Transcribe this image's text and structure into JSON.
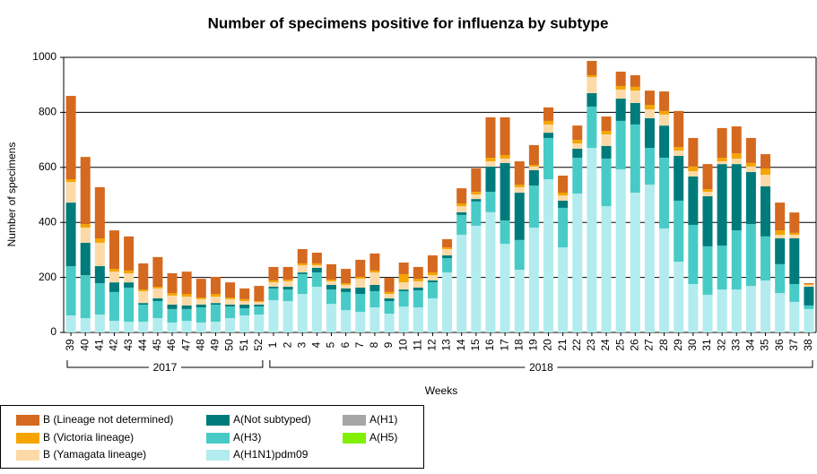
{
  "chart_data": {
    "type": "stacked-bar",
    "title": "Number of specimens positive for influenza by subtype",
    "y_label": "Number of specimens",
    "x_label": "Weeks",
    "groups": [
      "2017",
      "2018"
    ],
    "categories": [
      "39",
      "40",
      "41",
      "42",
      "43",
      "44",
      "45",
      "46",
      "47",
      "48",
      "49",
      "50",
      "51",
      "52",
      "1",
      "2",
      "3",
      "4",
      "5",
      "6",
      "7",
      "8",
      "9",
      "10",
      "11",
      "12",
      "13",
      "14",
      "15",
      "16",
      "17",
      "18",
      "19",
      "20",
      "21",
      "22",
      "23",
      "24",
      "25",
      "26",
      "27",
      "28",
      "29",
      "30",
      "31",
      "32",
      "33",
      "34",
      "35",
      "36",
      "37",
      "38"
    ],
    "ylim": [
      0,
      1000
    ],
    "yticks": [
      0,
      200,
      400,
      600,
      800,
      1000
    ],
    "grid": true,
    "series": [
      {
        "name": "A(H1N1)pdm09",
        "color": "#b2ecee",
        "values": [
          62,
          52,
          65,
          42,
          39,
          39,
          52,
          36,
          42,
          36,
          39,
          52,
          62,
          65,
          117,
          114,
          140,
          166,
          104,
          81,
          75,
          91,
          68,
          94,
          91,
          124,
          218,
          355,
          388,
          437,
          322,
          228,
          381,
          557,
          309,
          505,
          671,
          459,
          593,
          508,
          537,
          378,
          257,
          176,
          137,
          156,
          156,
          169,
          189,
          143,
          111,
          85
        ]
      },
      {
        "name": "A(H3)",
        "color": "#48cbc7",
        "values": [
          179,
          156,
          114,
          105,
          124,
          62,
          62,
          49,
          43,
          55,
          62,
          42,
          26,
          29,
          43,
          42,
          72,
          52,
          52,
          66,
          65,
          59,
          46,
          56,
          62,
          58,
          52,
          72,
          88,
          74,
          85,
          108,
          153,
          150,
          144,
          130,
          150,
          173,
          176,
          248,
          134,
          257,
          222,
          215,
          176,
          160,
          215,
          225,
          160,
          105,
          65,
          13
        ]
      },
      {
        "name": "A(Not subtyped)",
        "color": "#007b7b",
        "values": [
          231,
          118,
          62,
          35,
          19,
          6,
          10,
          16,
          13,
          10,
          6,
          7,
          13,
          7,
          6,
          10,
          6,
          17,
          17,
          13,
          23,
          23,
          10,
          6,
          10,
          7,
          10,
          10,
          9,
          92,
          209,
          172,
          56,
          19,
          26,
          33,
          49,
          46,
          81,
          78,
          108,
          117,
          163,
          176,
          182,
          296,
          241,
          189,
          182,
          94,
          166,
          68
        ]
      },
      {
        "name": "A(H1)",
        "color": "#a6a6a6",
        "values": [
          0,
          0,
          0,
          0,
          0,
          0,
          0,
          0,
          0,
          0,
          0,
          0,
          0,
          0,
          0,
          0,
          0,
          0,
          0,
          0,
          0,
          0,
          0,
          0,
          0,
          0,
          0,
          0,
          0,
          0,
          0,
          0,
          0,
          0,
          0,
          0,
          0,
          0,
          0,
          0,
          0,
          0,
          0,
          0,
          0,
          0,
          0,
          0,
          0,
          0,
          0,
          0
        ]
      },
      {
        "name": "A(H5)",
        "color": "#80f000",
        "values": [
          0,
          0,
          0,
          0,
          0,
          0,
          0,
          0,
          0,
          0,
          0,
          0,
          0,
          0,
          0,
          0,
          0,
          0,
          0,
          0,
          0,
          0,
          0,
          0,
          0,
          0,
          0,
          0,
          0,
          0,
          0,
          0,
          0,
          0,
          0,
          0,
          0,
          0,
          0,
          0,
          0,
          0,
          0,
          0,
          0,
          0,
          0,
          0,
          0,
          0,
          0,
          0
        ]
      },
      {
        "name": "B (Yamagata lineage)",
        "color": "#fcdaa8",
        "values": [
          75,
          55,
          85,
          39,
          33,
          43,
          36,
          33,
          32,
          20,
          23,
          20,
          13,
          10,
          16,
          20,
          26,
          9,
          13,
          13,
          32,
          45,
          16,
          26,
          23,
          19,
          23,
          22,
          17,
          19,
          16,
          20,
          13,
          30,
          19,
          19,
          58,
          42,
          33,
          45,
          32,
          40,
          19,
          19,
          16,
          10,
          20,
          20,
          42,
          13,
          13,
          7
        ]
      },
      {
        "name": "B (Victoria lineage)",
        "color": "#f5a400",
        "values": [
          10,
          13,
          16,
          10,
          10,
          6,
          6,
          9,
          10,
          6,
          10,
          6,
          7,
          3,
          7,
          6,
          7,
          7,
          6,
          6,
          7,
          7,
          7,
          30,
          9,
          10,
          6,
          10,
          9,
          13,
          13,
          9,
          6,
          13,
          10,
          13,
          7,
          13,
          13,
          14,
          16,
          13,
          13,
          17,
          10,
          13,
          19,
          13,
          23,
          16,
          7,
          3
        ]
      },
      {
        "name": "B (Lineage not determined)",
        "color": "#d5691f",
        "values": [
          303,
          244,
          186,
          140,
          124,
          95,
          108,
          72,
          81,
          68,
          62,
          55,
          39,
          55,
          49,
          46,
          52,
          39,
          56,
          52,
          62,
          62,
          52,
          42,
          43,
          62,
          30,
          55,
          85,
          147,
          137,
          85,
          72,
          49,
          62,
          52,
          52,
          52,
          52,
          42,
          52,
          71,
          131,
          104,
          91,
          108,
          98,
          91,
          52,
          101,
          74,
          3
        ]
      }
    ],
    "legend_order": [
      7,
      6,
      5,
      2,
      1,
      0,
      3,
      4
    ]
  }
}
